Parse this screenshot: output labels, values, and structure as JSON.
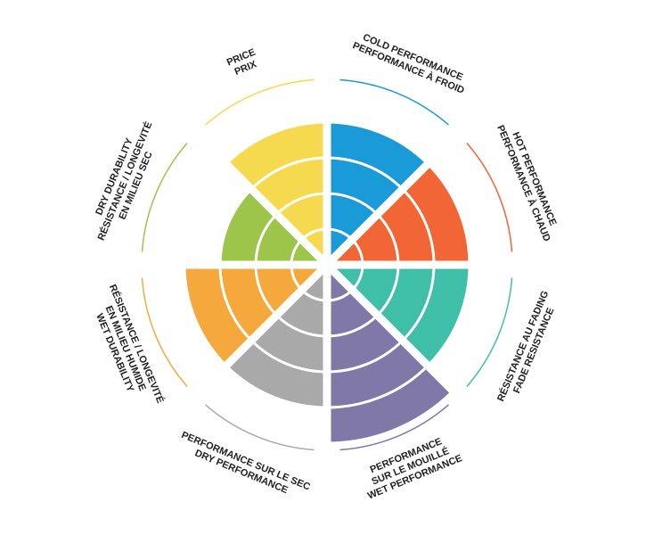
{
  "chart_data": {
    "type": "polar",
    "categories": [
      [
        "COLD PERFORMANCE",
        "PERFORMANCE À FROID"
      ],
      [
        "HOT PERFORMANCE",
        "PERFORMANCE À CHAUD"
      ],
      [
        "RÉSISTANCE AU FADING",
        "FADE RESISTANCE"
      ],
      [
        "PERFORMANCE",
        "SUR LE MOUILLÉ",
        "WET PERFORMANCE"
      ],
      [
        "PERFORMANCE SUR LE SEC",
        "DRY PERFORMANCE"
      ],
      [
        "RÉSISTANCE / LONGEVITÉ",
        "EN MILIEU HUMIDE",
        "WET DURABILITY"
      ],
      [
        "DRY DURABILITY",
        "RÉSISTANCE / LONGEVITÉ",
        "EN MILIEU SEC"
      ],
      [
        "PRICE",
        "PRIX"
      ]
    ],
    "values": [
      4,
      4,
      4,
      5,
      4,
      4,
      3,
      4
    ],
    "colors": [
      "#1a9ad6",
      "#f26535",
      "#3fbfa8",
      "#8078a6",
      "#a9a9a9",
      "#f5a93c",
      "#9dc54a",
      "#f5d94e"
    ],
    "rlim": [
      0,
      5
    ],
    "rticks": [
      1,
      2,
      3,
      4,
      5
    ]
  }
}
